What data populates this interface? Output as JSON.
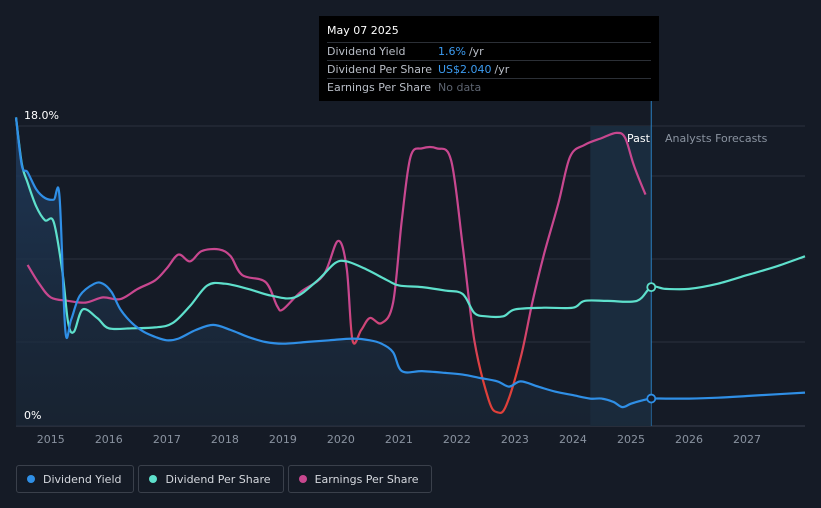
{
  "colors": {
    "background": "#151b26",
    "dividend_yield": "#2f8fe6",
    "dividend_per_share": "#5ee0cc",
    "eps": "#c8478f",
    "eps_low": "#e0403a"
  },
  "tooltip": {
    "date": "May 07 2025",
    "rows": [
      {
        "label": "Dividend Yield",
        "value": "1.6%",
        "unit": "/yr"
      },
      {
        "label": "Dividend Per Share",
        "value": "US$2.040",
        "unit": "/yr"
      },
      {
        "label": "Earnings Per Share",
        "value": "No data"
      }
    ]
  },
  "legend": [
    {
      "label": "Dividend Yield",
      "color": "#2f8fe6"
    },
    {
      "label": "Dividend Per Share",
      "color": "#5ee0cc"
    },
    {
      "label": "Earnings Per Share",
      "color": "#c8478f"
    }
  ],
  "chart_data": {
    "type": "line",
    "y_top_label": "18.0%",
    "y_bottom_label": "0%",
    "ylim": [
      0,
      18
    ],
    "xlim": [
      2014.4,
      2028.0
    ],
    "x_ticks": [
      "2015",
      "2016",
      "2017",
      "2018",
      "2019",
      "2020",
      "2021",
      "2022",
      "2023",
      "2024",
      "2025",
      "2026",
      "2027"
    ],
    "past_label": "Past",
    "forecast_label": "Analysts Forecasts",
    "forecast_start": 2025.35,
    "shade_start": 2024.3,
    "series": [
      {
        "name": "Dividend Yield",
        "unit": "%",
        "points": [
          [
            2014.4,
            18.0
          ],
          [
            2014.5,
            15.2
          ],
          [
            2014.6,
            14.8
          ],
          [
            2014.75,
            13.8
          ],
          [
            2014.9,
            13.3
          ],
          [
            2015.05,
            13.2
          ],
          [
            2015.15,
            13.4
          ],
          [
            2015.25,
            5.6
          ],
          [
            2015.35,
            6.2
          ],
          [
            2015.5,
            7.6
          ],
          [
            2015.75,
            8.3
          ],
          [
            2015.9,
            8.3
          ],
          [
            2016.05,
            7.8
          ],
          [
            2016.2,
            6.8
          ],
          [
            2016.4,
            6.0
          ],
          [
            2016.6,
            5.5
          ],
          [
            2016.8,
            5.2
          ],
          [
            2017.0,
            5.0
          ],
          [
            2017.2,
            5.1
          ],
          [
            2017.5,
            5.6
          ],
          [
            2017.8,
            5.9
          ],
          [
            2018.1,
            5.6
          ],
          [
            2018.4,
            5.2
          ],
          [
            2018.7,
            4.9
          ],
          [
            2019.0,
            4.8
          ],
          [
            2019.4,
            4.9
          ],
          [
            2019.8,
            5.0
          ],
          [
            2020.2,
            5.1
          ],
          [
            2020.5,
            5.0
          ],
          [
            2020.7,
            4.8
          ],
          [
            2020.9,
            4.3
          ],
          [
            2021.05,
            3.2
          ],
          [
            2021.4,
            3.2
          ],
          [
            2021.8,
            3.1
          ],
          [
            2022.1,
            3.0
          ],
          [
            2022.4,
            2.8
          ],
          [
            2022.7,
            2.6
          ],
          [
            2022.9,
            2.3
          ],
          [
            2023.1,
            2.6
          ],
          [
            2023.4,
            2.3
          ],
          [
            2023.7,
            2.0
          ],
          [
            2024.0,
            1.8
          ],
          [
            2024.3,
            1.6
          ],
          [
            2024.5,
            1.6
          ],
          [
            2024.7,
            1.4
          ],
          [
            2024.85,
            1.1
          ],
          [
            2025.0,
            1.3
          ],
          [
            2025.2,
            1.5
          ],
          [
            2025.35,
            1.6
          ],
          [
            2025.6,
            1.6
          ],
          [
            2026.0,
            1.6
          ],
          [
            2026.5,
            1.65
          ],
          [
            2027.0,
            1.75
          ],
          [
            2027.5,
            1.85
          ],
          [
            2028.0,
            1.95
          ]
        ]
      },
      {
        "name": "Dividend Per Share",
        "unit": "US$",
        "points": [
          [
            2014.4,
            18.0
          ],
          [
            2014.5,
            15.3
          ],
          [
            2014.6,
            14.2
          ],
          [
            2014.75,
            12.8
          ],
          [
            2014.9,
            12.0
          ],
          [
            2015.05,
            11.9
          ],
          [
            2015.2,
            9.0
          ],
          [
            2015.3,
            6.0
          ],
          [
            2015.4,
            5.5
          ],
          [
            2015.55,
            6.8
          ],
          [
            2015.8,
            6.3
          ],
          [
            2016.0,
            5.7
          ],
          [
            2016.4,
            5.7
          ],
          [
            2016.8,
            5.75
          ],
          [
            2017.1,
            6.0
          ],
          [
            2017.4,
            7.0
          ],
          [
            2017.7,
            8.2
          ],
          [
            2018.0,
            8.3
          ],
          [
            2018.4,
            8.0
          ],
          [
            2018.8,
            7.6
          ],
          [
            2019.2,
            7.5
          ],
          [
            2019.6,
            8.5
          ],
          [
            2019.9,
            9.5
          ],
          [
            2020.1,
            9.6
          ],
          [
            2020.4,
            9.2
          ],
          [
            2020.8,
            8.5
          ],
          [
            2021.0,
            8.2
          ],
          [
            2021.4,
            8.1
          ],
          [
            2021.8,
            7.9
          ],
          [
            2022.1,
            7.7
          ],
          [
            2022.3,
            6.6
          ],
          [
            2022.5,
            6.4
          ],
          [
            2022.8,
            6.4
          ],
          [
            2023.0,
            6.8
          ],
          [
            2023.5,
            6.9
          ],
          [
            2024.0,
            6.9
          ],
          [
            2024.2,
            7.3
          ],
          [
            2024.6,
            7.3
          ],
          [
            2025.1,
            7.3
          ],
          [
            2025.35,
            8.1
          ],
          [
            2025.6,
            8.0
          ],
          [
            2026.0,
            8.0
          ],
          [
            2026.5,
            8.3
          ],
          [
            2027.0,
            8.8
          ],
          [
            2027.5,
            9.3
          ],
          [
            2028.0,
            9.9
          ]
        ]
      },
      {
        "name": "Earnings Per Share",
        "unit": "US$",
        "points": [
          [
            2014.6,
            9.4
          ],
          [
            2014.8,
            8.3
          ],
          [
            2015.0,
            7.5
          ],
          [
            2015.3,
            7.3
          ],
          [
            2015.6,
            7.2
          ],
          [
            2015.9,
            7.5
          ],
          [
            2016.2,
            7.4
          ],
          [
            2016.5,
            8.0
          ],
          [
            2016.8,
            8.5
          ],
          [
            2017.0,
            9.2
          ],
          [
            2017.2,
            10.0
          ],
          [
            2017.4,
            9.6
          ],
          [
            2017.6,
            10.2
          ],
          [
            2017.9,
            10.3
          ],
          [
            2018.1,
            9.9
          ],
          [
            2018.3,
            8.8
          ],
          [
            2018.7,
            8.4
          ],
          [
            2018.9,
            7.0
          ],
          [
            2019.0,
            6.8
          ],
          [
            2019.3,
            7.8
          ],
          [
            2019.7,
            8.8
          ],
          [
            2019.95,
            10.8
          ],
          [
            2020.1,
            9.2
          ],
          [
            2020.2,
            5.0
          ],
          [
            2020.35,
            5.6
          ],
          [
            2020.5,
            6.3
          ],
          [
            2020.7,
            6.0
          ],
          [
            2020.9,
            7.2
          ],
          [
            2021.05,
            12.0
          ],
          [
            2021.2,
            15.7
          ],
          [
            2021.4,
            16.2
          ],
          [
            2021.65,
            16.2
          ],
          [
            2021.9,
            15.5
          ],
          [
            2022.1,
            10.5
          ],
          [
            2022.3,
            5.0
          ],
          [
            2022.55,
            1.5
          ],
          [
            2022.7,
            0.8
          ],
          [
            2022.85,
            1.2
          ],
          [
            2023.1,
            4.0
          ],
          [
            2023.3,
            7.2
          ],
          [
            2023.5,
            10.0
          ],
          [
            2023.75,
            13.0
          ],
          [
            2023.95,
            15.7
          ],
          [
            2024.2,
            16.4
          ],
          [
            2024.5,
            16.8
          ],
          [
            2024.75,
            17.1
          ],
          [
            2024.9,
            16.8
          ],
          [
            2025.05,
            15.2
          ],
          [
            2025.25,
            13.5
          ]
        ]
      }
    ]
  }
}
